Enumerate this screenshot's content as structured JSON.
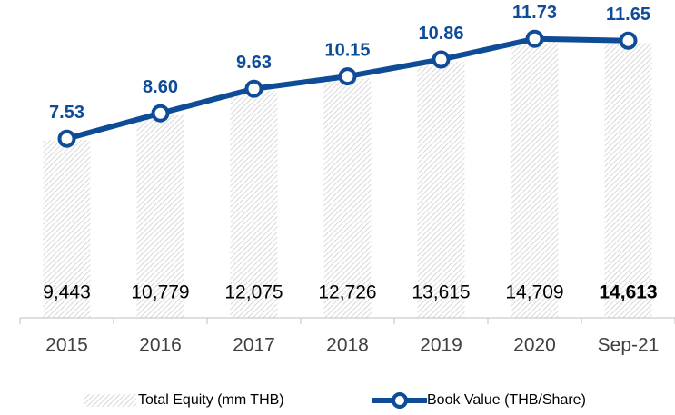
{
  "chart_data": {
    "type": "bar_line",
    "categories": [
      "2015",
      "2016",
      "2017",
      "2018",
      "2019",
      "2020",
      "Sep-21"
    ],
    "series": [
      {
        "name": "Total Equity (mm THB)",
        "type": "bar",
        "color": "#bfbfbf",
        "values": [
          9443,
          10779,
          12075,
          12726,
          13615,
          14709,
          14613
        ],
        "value_labels": [
          "9,443",
          "10,779",
          "12,075",
          "12,726",
          "13,615",
          "14,709",
          "14,613"
        ]
      },
      {
        "name": "Book Value (THB/Share)",
        "type": "line",
        "axis": "y2",
        "color": "#0f4c97",
        "values": [
          7.53,
          8.6,
          9.63,
          10.15,
          10.86,
          11.73,
          11.65
        ],
        "value_labels": [
          "7.53",
          "8.60",
          "9.63",
          "10.15",
          "10.86",
          "11.73",
          "11.65"
        ]
      }
    ],
    "ylim": [
      0,
      16900
    ],
    "y2lim": [
      0,
      13.36
    ],
    "legend": "bottom"
  }
}
